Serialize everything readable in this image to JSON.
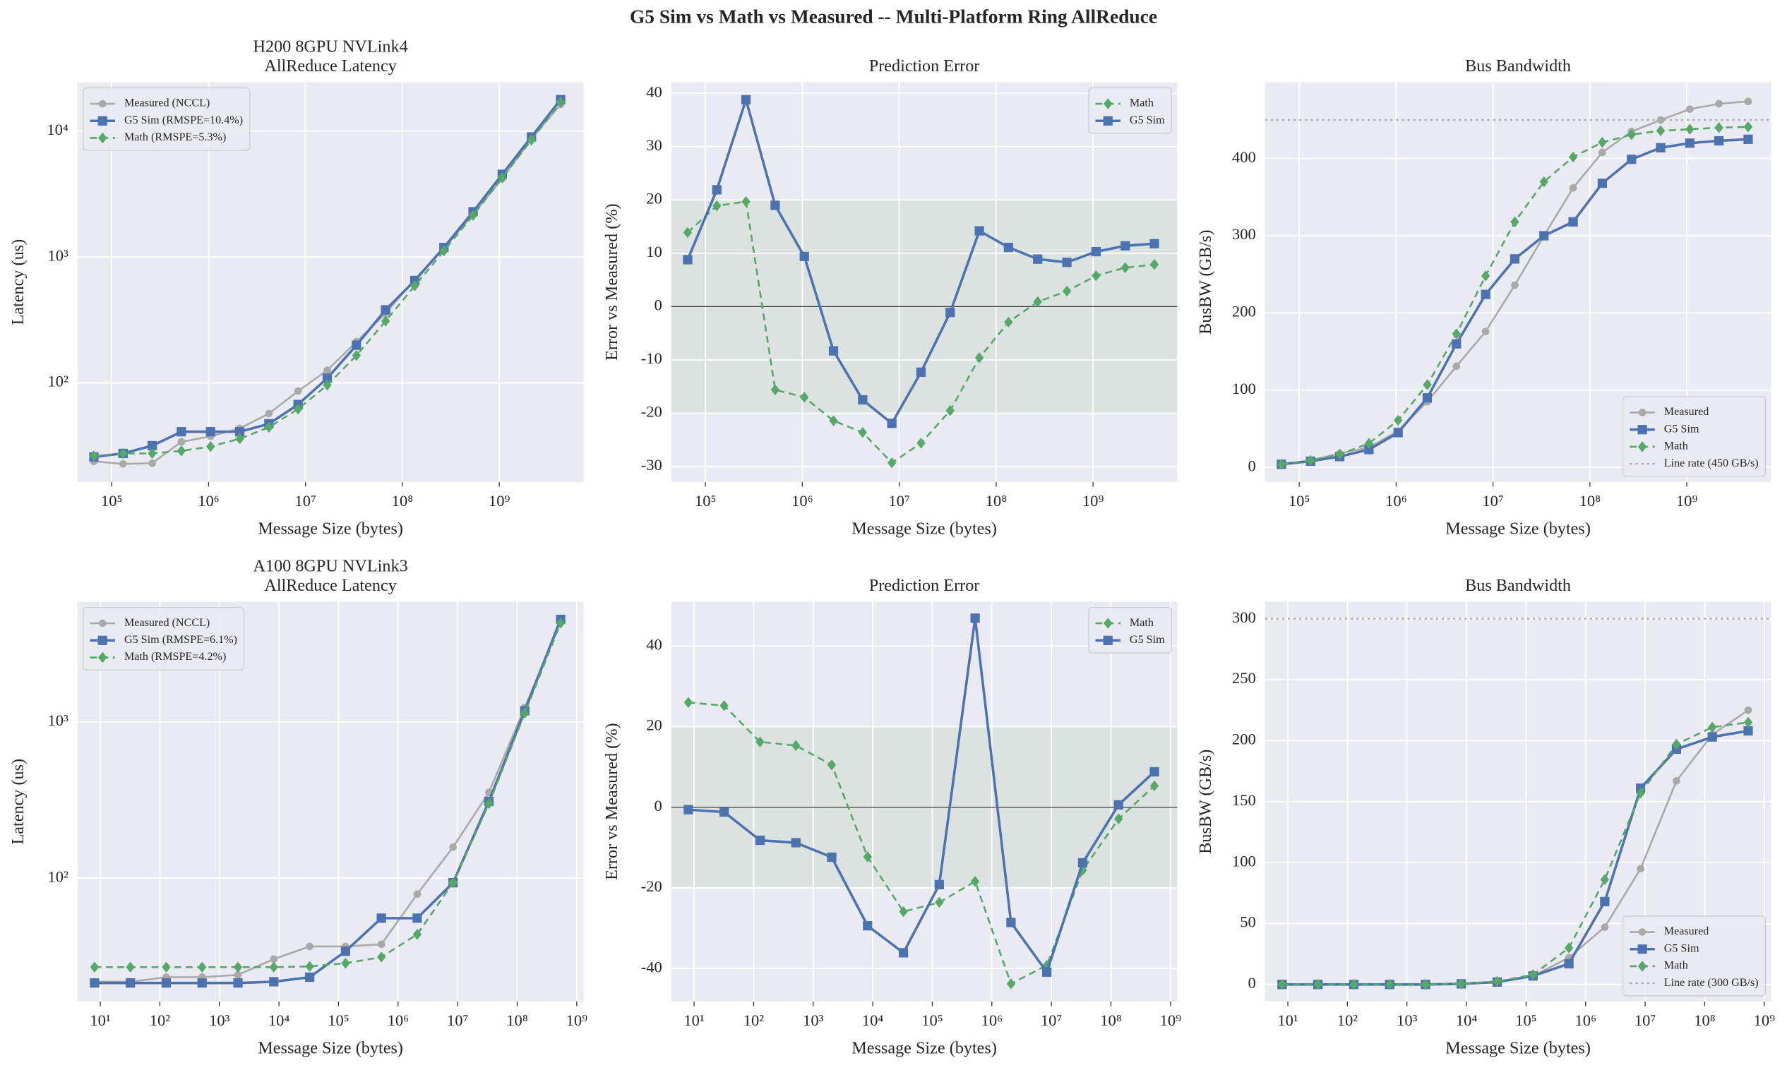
{
  "title": "G5 Sim vs Math vs Measured -- Multi-Platform Ring AllReduce",
  "chart_data": [
    {
      "type": "line",
      "title": "H200 8GPU NVLink4",
      "subtitle": "AllReduce Latency",
      "xlabel": "Message Size (bytes)",
      "ylabel": "Latency (us)",
      "xscale": "log",
      "yscale": "log",
      "grid": true,
      "legend": "upper left",
      "x": [
        65536,
        131072,
        262144,
        524288,
        1048576,
        2097152,
        4194304,
        8388608,
        16777216,
        33554432,
        67108864,
        134217728,
        268435456,
        536870912,
        1073741824,
        2147483648,
        4294967296
      ],
      "xlim": [
        44400,
        7400000000
      ],
      "ylim": [
        16.3,
        24500
      ],
      "xticks": [
        {
          "value": 100000,
          "label": "10⁵"
        },
        {
          "value": 1000000,
          "label": "10⁶"
        },
        {
          "value": 10000000,
          "label": "10⁷"
        },
        {
          "value": 100000000,
          "label": "10⁸"
        },
        {
          "value": 1000000000,
          "label": "10⁹"
        }
      ],
      "yticks": [
        {
          "value": 100,
          "label": "10²"
        },
        {
          "value": 1000,
          "label": "10³"
        },
        {
          "value": 10000,
          "label": "10⁴"
        }
      ],
      "series": [
        {
          "name": "Measured (NCCL)",
          "color": "#a9a9a9",
          "marker": "o",
          "linestyle": "-",
          "values": [
            23.8,
            22.7,
            23,
            34,
            37.6,
            43.5,
            57,
            86,
            126,
            212,
            357,
            664,
            1170,
            2180,
            4200,
            8700,
            16300
          ]
        },
        {
          "name": "G5 Sim (RMSPE=10.4%)",
          "color": "#4c72b0",
          "marker": "s",
          "linestyle": "-",
          "values": [
            25.8,
            27.5,
            31.7,
            40.9,
            40.9,
            40.9,
            47.3,
            67.3,
            109,
            199,
            380,
            650,
            1190,
            2290,
            4540,
            8990,
            17800
          ]
        },
        {
          "name": "Math (RMSPE=5.3%)",
          "color": "#55a868",
          "marker": "D",
          "linestyle": "--",
          "values": [
            26.3,
            27.5,
            27.5,
            28.8,
            31.2,
            36,
            44.4,
            62,
            96,
            165,
            310,
            590,
            1120,
            2140,
            4260,
            8500,
            17000
          ]
        }
      ]
    },
    {
      "type": "line",
      "title": "Prediction Error",
      "xlabel": "Message Size (bytes)",
      "ylabel": "Error vs Measured (%)",
      "xscale": "log",
      "yscale": "linear",
      "grid": true,
      "legend": "upper right",
      "band": [
        -20,
        20
      ],
      "reference_line": 0,
      "x": [
        65536,
        131072,
        262144,
        524288,
        1048576,
        2097152,
        4194304,
        8388608,
        16777216,
        33554432,
        67108864,
        134217728,
        268435456,
        536870912,
        1073741824,
        2147483648,
        4294967296
      ],
      "xlim": [
        44400,
        7400000000
      ],
      "ylim": [
        -32.9,
        42.1
      ],
      "xticks": [
        {
          "value": 100000,
          "label": "10⁵"
        },
        {
          "value": 1000000,
          "label": "10⁶"
        },
        {
          "value": 10000000,
          "label": "10⁷"
        },
        {
          "value": 100000000,
          "label": "10⁸"
        },
        {
          "value": 1000000000,
          "label": "10⁹"
        }
      ],
      "yticks": [
        -30,
        -20,
        -10,
        0,
        10,
        20,
        30,
        40
      ],
      "series": [
        {
          "name": "Math",
          "color": "#55a868",
          "marker": "D",
          "linestyle": "--",
          "values": [
            13.9,
            18.9,
            19.7,
            -15.6,
            -17,
            -21.4,
            -23.6,
            -29.3,
            -25.6,
            -19.5,
            -9.6,
            -2.9,
            0.9,
            2.9,
            5.8,
            7.3,
            7.9
          ]
        },
        {
          "name": "G5 Sim",
          "color": "#4c72b0",
          "marker": "s",
          "linestyle": "-",
          "values": [
            8.8,
            21.9,
            38.8,
            19,
            9.4,
            -8.3,
            -17.5,
            -21.9,
            -12.3,
            -1.1,
            14.2,
            11.1,
            8.9,
            8.3,
            10.3,
            11.4,
            11.8
          ]
        }
      ]
    },
    {
      "type": "line",
      "title": "Bus Bandwidth",
      "xlabel": "Message Size (bytes)",
      "ylabel": "BusBW (GB/s)",
      "xscale": "log",
      "yscale": "linear",
      "grid": true,
      "legend": "lower right",
      "hline": {
        "value": 450,
        "label": "Line rate (450 GB/s)",
        "color": "#a9a9a9"
      },
      "x": [
        65536,
        131072,
        262144,
        524288,
        1048576,
        2097152,
        4194304,
        8388608,
        16777216,
        33554432,
        67108864,
        134217728,
        268435456,
        536870912,
        1073741824,
        2147483648,
        4294967296
      ],
      "xlim": [
        44400,
        7400000000
      ],
      "ylim": [
        -19,
        499
      ],
      "xticks": [
        {
          "value": 100000,
          "label": "10⁵"
        },
        {
          "value": 1000000,
          "label": "10⁶"
        },
        {
          "value": 10000000,
          "label": "10⁷"
        },
        {
          "value": 100000000,
          "label": "10⁸"
        },
        {
          "value": 1000000000,
          "label": "10⁹"
        }
      ],
      "yticks": [
        0,
        100,
        200,
        300,
        400
      ],
      "series": [
        {
          "name": "Measured",
          "color": "#a9a9a9",
          "marker": "o",
          "linestyle": "-",
          "values": [
            4,
            9,
            18,
            26,
            47,
            85,
            131,
            176,
            236,
            300,
            362,
            408,
            435,
            450,
            464,
            471,
            474
          ]
        },
        {
          "name": "G5 Sim",
          "color": "#4c72b0",
          "marker": "s",
          "linestyle": "-",
          "values": [
            4,
            8,
            14,
            23,
            45,
            90,
            160,
            224,
            270,
            300,
            318,
            368,
            399,
            414,
            420,
            423,
            425
          ]
        },
        {
          "name": "Math",
          "color": "#55a868",
          "marker": "D",
          "linestyle": "--",
          "values": [
            4,
            9,
            17,
            31,
            61,
            107,
            173,
            248,
            318,
            370,
            402,
            421,
            431,
            436,
            438,
            440,
            441
          ]
        }
      ]
    },
    {
      "type": "line",
      "title": "A100 8GPU NVLink3",
      "subtitle": "AllReduce Latency",
      "xlabel": "Message Size (bytes)",
      "ylabel": "Latency (us)",
      "xscale": "log",
      "yscale": "log",
      "grid": true,
      "legend": "upper left",
      "x": [
        8,
        32,
        128,
        512,
        2048,
        8192,
        32768,
        131072,
        524288,
        2097152,
        8388608,
        33554432,
        134217728,
        536870912
      ],
      "xlim": [
        4.14,
        1300000000
      ],
      "ylim": [
        16.2,
        5900
      ],
      "xticks": [
        {
          "value": 10,
          "label": "10¹"
        },
        {
          "value": 100,
          "label": "10²"
        },
        {
          "value": 1000,
          "label": "10³"
        },
        {
          "value": 10000,
          "label": "10⁴"
        },
        {
          "value": 100000,
          "label": "10⁵"
        },
        {
          "value": 1000000,
          "label": "10⁶"
        },
        {
          "value": 10000000,
          "label": "10⁷"
        },
        {
          "value": 100000000,
          "label": "10⁸"
        },
        {
          "value": 1000000000,
          "label": "10⁹"
        }
      ],
      "yticks": [
        {
          "value": 100,
          "label": "10²"
        },
        {
          "value": 1000,
          "label": "10³"
        }
      ],
      "series": [
        {
          "name": "Measured (NCCL)",
          "color": "#a9a9a9",
          "marker": "o",
          "linestyle": "-",
          "values": [
            21.7,
            21.7,
            23.2,
            23.2,
            24,
            30.3,
            36.5,
            36.5,
            37.7,
            79,
            158,
            354,
            1240,
            4370
          ]
        },
        {
          "name": "G5 Sim (RMSPE=6.1%)",
          "color": "#4c72b0",
          "marker": "s",
          "linestyle": "-",
          "values": [
            21.3,
            21.3,
            21.3,
            21.3,
            21.3,
            21.7,
            23.2,
            34,
            55.4,
            55.4,
            93.5,
            310,
            1180,
            4540
          ]
        },
        {
          "name": "Math (RMSPE=4.2%)",
          "color": "#55a868",
          "marker": "D",
          "linestyle": "--",
          "values": [
            26.9,
            26.9,
            26.9,
            26.9,
            26.9,
            26.9,
            27.2,
            28.5,
            31.2,
            43.6,
            93.5,
            300,
            1140,
            4300
          ]
        }
      ]
    },
    {
      "type": "line",
      "title": "Prediction Error",
      "xlabel": "Message Size (bytes)",
      "ylabel": "Error vs Measured (%)",
      "xscale": "log",
      "yscale": "linear",
      "grid": true,
      "legend": "upper right",
      "band": [
        -20,
        20
      ],
      "reference_line": 0,
      "x": [
        8,
        32,
        128,
        512,
        2048,
        8192,
        32768,
        131072,
        524288,
        2097152,
        8388608,
        33554432,
        134217728,
        536870912
      ],
      "xlim": [
        4.14,
        1300000000
      ],
      "ylim": [
        -48.2,
        51
      ],
      "xticks": [
        {
          "value": 10,
          "label": "10¹"
        },
        {
          "value": 100,
          "label": "10²"
        },
        {
          "value": 1000,
          "label": "10³"
        },
        {
          "value": 10000,
          "label": "10⁴"
        },
        {
          "value": 100000,
          "label": "10⁵"
        },
        {
          "value": 1000000,
          "label": "10⁶"
        },
        {
          "value": 10000000,
          "label": "10⁷"
        },
        {
          "value": 100000000,
          "label": "10⁸"
        },
        {
          "value": 1000000000,
          "label": "10⁹"
        }
      ],
      "yticks": [
        -40,
        -20,
        0,
        20,
        40
      ],
      "series": [
        {
          "name": "Math",
          "color": "#55a868",
          "marker": "D",
          "linestyle": "--",
          "values": [
            26,
            25.2,
            16.2,
            15.3,
            10.5,
            -12.3,
            -25.9,
            -23.6,
            -18.4,
            -43.8,
            -39.2,
            -15.6,
            -2.9,
            5.3
          ]
        },
        {
          "name": "G5 Sim",
          "color": "#4c72b0",
          "marker": "s",
          "linestyle": "-",
          "values": [
            -0.6,
            -1.2,
            -8.2,
            -8.8,
            -12.4,
            -29.4,
            -36.1,
            -19.2,
            46.9,
            -28.6,
            -40.9,
            -13.8,
            0.6,
            8.8
          ]
        }
      ]
    },
    {
      "type": "line",
      "title": "Bus Bandwidth",
      "xlabel": "Message Size (bytes)",
      "ylabel": "BusBW (GB/s)",
      "xscale": "log",
      "yscale": "linear",
      "grid": true,
      "legend": "lower right",
      "hline": {
        "value": 300,
        "label": "Line rate (300 GB/s)",
        "color": "#a9a9a9"
      },
      "x": [
        8,
        32,
        128,
        512,
        2048,
        8192,
        32768,
        131072,
        524288,
        2097152,
        8388608,
        33554432,
        134217728,
        536870912
      ],
      "xlim": [
        4.14,
        1300000000
      ],
      "ylim": [
        -14,
        314
      ],
      "xticks": [
        {
          "value": 10,
          "label": "10¹"
        },
        {
          "value": 100,
          "label": "10²"
        },
        {
          "value": 1000,
          "label": "10³"
        },
        {
          "value": 10000,
          "label": "10⁴"
        },
        {
          "value": 100000,
          "label": "10⁵"
        },
        {
          "value": 1000000,
          "label": "10⁶"
        },
        {
          "value": 10000000,
          "label": "10⁷"
        },
        {
          "value": 100000000,
          "label": "10⁸"
        },
        {
          "value": 1000000000,
          "label": "10⁹"
        }
      ],
      "yticks": [
        0,
        50,
        100,
        150,
        200,
        250,
        300
      ],
      "series": [
        {
          "name": "Measured",
          "color": "#a9a9a9",
          "marker": "o",
          "linestyle": "-",
          "values": [
            0,
            0,
            0,
            0,
            0,
            0.5,
            2,
            7,
            22,
            47,
            95,
            167,
            205,
            225
          ]
        },
        {
          "name": "G5 Sim",
          "color": "#4c72b0",
          "marker": "s",
          "linestyle": "-",
          "values": [
            0,
            0,
            0,
            0,
            0,
            0.5,
            2,
            7,
            17,
            68,
            161,
            193,
            203,
            208
          ]
        },
        {
          "name": "Math",
          "color": "#55a868",
          "marker": "D",
          "linestyle": "--",
          "values": [
            0,
            0,
            0,
            0,
            0,
            0.5,
            2.5,
            8,
            30,
            86,
            157,
            197,
            211,
            215
          ]
        }
      ]
    }
  ]
}
